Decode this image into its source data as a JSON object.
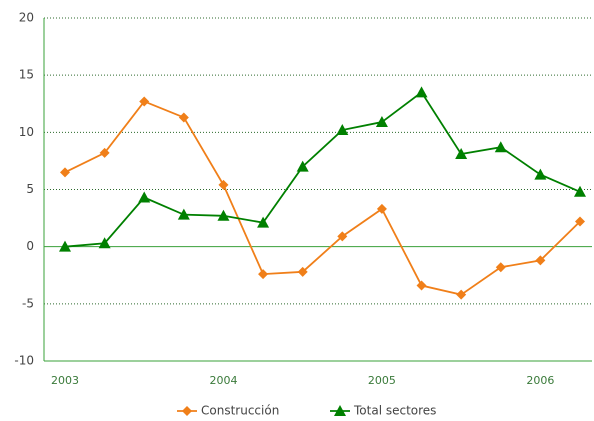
{
  "chart_data": {
    "type": "line",
    "categories": [
      "2003",
      null,
      null,
      null,
      "2004",
      null,
      null,
      null,
      "2005",
      null,
      null,
      null,
      "2006",
      null
    ],
    "series": [
      {
        "name": "Construcción",
        "color": "#f07f19",
        "marker": "diamond",
        "values": [
          6.5,
          8.2,
          12.7,
          11.3,
          5.4,
          -2.4,
          -2.2,
          0.9,
          3.3,
          -3.4,
          -4.2,
          -1.8,
          -1.2,
          2.2
        ]
      },
      {
        "name": "Total sectores",
        "color": "#008000",
        "marker": "triangle",
        "values": [
          0.0,
          0.3,
          4.3,
          2.8,
          2.7,
          2.1,
          7.0,
          10.2,
          10.9,
          13.5,
          8.1,
          8.7,
          6.3,
          4.8
        ]
      }
    ],
    "ylim": [
      -10,
      20
    ],
    "yticks": [
      -10,
      -5,
      0,
      5,
      10,
      15,
      20
    ],
    "grid": true,
    "legend": "bottom"
  }
}
